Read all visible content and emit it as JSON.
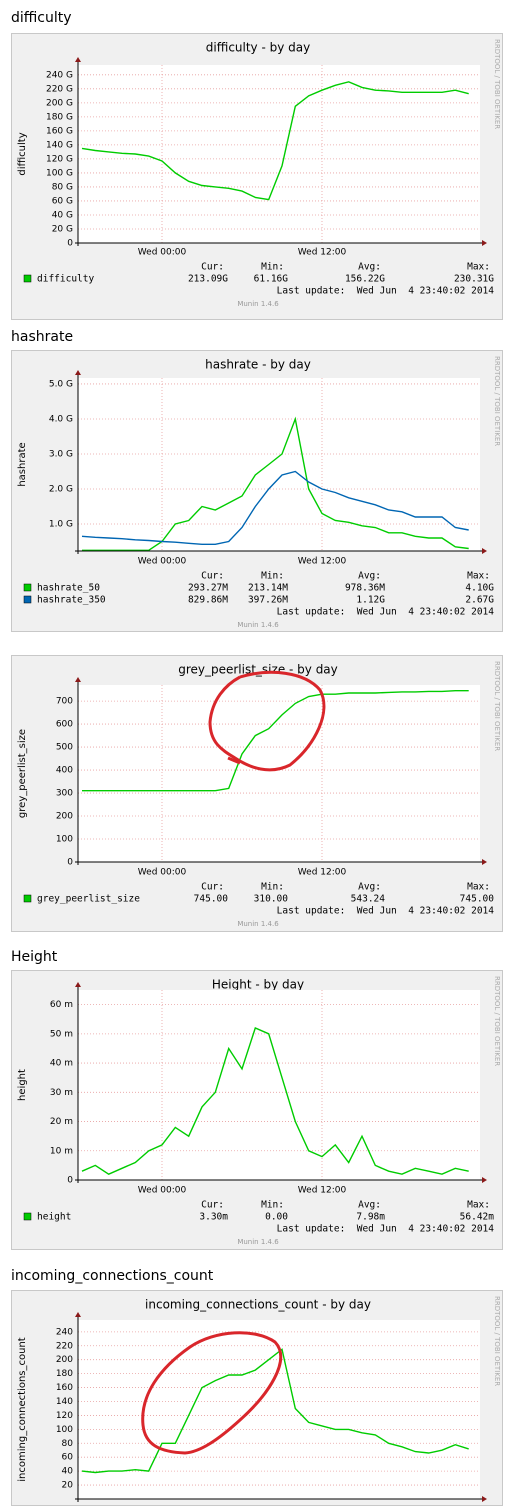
{
  "chart_data": [
    {
      "type": "line",
      "section_title": "difficulty",
      "title": "difficulty - by day",
      "ylabel": "difficulty",
      "x": [
        -6,
        -5,
        -4,
        -3,
        -2,
        -1,
        0,
        1,
        2,
        3,
        4,
        5,
        6,
        7,
        8,
        9,
        10,
        11,
        12,
        13,
        14,
        15,
        16,
        17,
        18,
        19,
        20,
        21,
        22,
        23
      ],
      "xlim": [
        -6.3,
        23.85
      ],
      "xticks": [
        {
          "value": 0,
          "label": "Wed 00:00"
        },
        {
          "value": 12,
          "label": "Wed 12:00"
        }
      ],
      "ylim": [
        0,
        254
      ],
      "yticks": [
        0,
        {
          "value": 20,
          "label": "20 G"
        },
        {
          "value": 40,
          "label": "40 G"
        },
        {
          "value": 60,
          "label": "60 G"
        },
        {
          "value": 80,
          "label": "80 G"
        },
        {
          "value": 100,
          "label": "100 G"
        },
        {
          "value": 120,
          "label": "120 G"
        },
        {
          "value": 140,
          "label": "140 G"
        },
        {
          "value": 160,
          "label": "160 G"
        },
        {
          "value": 180,
          "label": "180 G"
        },
        {
          "value": 200,
          "label": "200 G"
        },
        {
          "value": 220,
          "label": "220 G"
        },
        {
          "value": 240,
          "label": "240 G"
        }
      ],
      "grid": true,
      "series": [
        {
          "name": "difficulty",
          "color": "#00cc00",
          "values": [
            135,
            132,
            130,
            128,
            127,
            124,
            117,
            100,
            88,
            82,
            80,
            78,
            74,
            65,
            62,
            110,
            195,
            210,
            218,
            225,
            230,
            222,
            218,
            217,
            215,
            215,
            215,
            215,
            218,
            213
          ]
        }
      ],
      "stats_headers": [
        "Cur:",
        "Min:",
        "Avg:",
        "Max:"
      ],
      "stats": [
        [
          "213.09G",
          "61.16G",
          "156.22G",
          "230.31G"
        ]
      ],
      "last_update": "Last update:  Wed Jun  4 23:40:02 2014",
      "footer": "Munin 1.4.6",
      "watermark": "RRDTOOL / TOBI OETIKER"
    },
    {
      "type": "line",
      "section_title": "hashrate",
      "title": "hashrate - by day",
      "ylabel": "hashrate",
      "x": [
        -6,
        -5,
        -4,
        -3,
        -2,
        -1,
        0,
        1,
        2,
        3,
        4,
        5,
        6,
        7,
        8,
        9,
        10,
        11,
        12,
        13,
        14,
        15,
        16,
        17,
        18,
        19,
        20,
        21,
        22,
        23
      ],
      "xlim": [
        -6.3,
        23.85
      ],
      "xticks": [
        {
          "value": 0,
          "label": "Wed 00:00"
        },
        {
          "value": 12,
          "label": "Wed 12:00"
        }
      ],
      "ylim": [
        0.23,
        5.17
      ],
      "yticks": [
        {
          "value": 1,
          "label": "1.0 G"
        },
        {
          "value": 2,
          "label": "2.0 G"
        },
        {
          "value": 3,
          "label": "3.0 G"
        },
        {
          "value": 4,
          "label": "4.0 G"
        },
        {
          "value": 5,
          "label": "5.0 G"
        }
      ],
      "grid": true,
      "series": [
        {
          "name": "hashrate_50",
          "color": "#00cc00",
          "values": [
            0.25,
            0.25,
            0.25,
            0.25,
            0.25,
            0.25,
            0.5,
            1.0,
            1.1,
            1.5,
            1.4,
            1.6,
            1.8,
            2.4,
            2.7,
            3.0,
            4.0,
            2.0,
            1.3,
            1.1,
            1.05,
            0.95,
            0.9,
            0.75,
            0.75,
            0.65,
            0.6,
            0.6,
            0.35,
            0.3
          ]
        },
        {
          "name": "hashrate_350",
          "color": "#0066b3",
          "values": [
            0.65,
            0.62,
            0.6,
            0.58,
            0.55,
            0.53,
            0.5,
            0.48,
            0.45,
            0.42,
            0.42,
            0.5,
            0.9,
            1.5,
            2.0,
            2.4,
            2.5,
            2.2,
            2.0,
            1.9,
            1.75,
            1.65,
            1.55,
            1.4,
            1.35,
            1.2,
            1.2,
            1.2,
            0.9,
            0.83
          ]
        }
      ],
      "stats_headers": [
        "Cur:",
        "Min:",
        "Avg:",
        "Max:"
      ],
      "stats": [
        [
          "293.27M",
          "213.14M",
          "978.36M",
          "4.10G"
        ],
        [
          "829.86M",
          "397.26M",
          "1.12G",
          "2.67G"
        ]
      ],
      "last_update": "Last update:  Wed Jun  4 23:40:02 2014",
      "footer": "Munin 1.4.6",
      "watermark": "RRDTOOL / TOBI OETIKER"
    },
    {
      "type": "line",
      "title": "grey_peerlist_size - by day",
      "ylabel": "grey_peerlist_size",
      "x": [
        -6,
        -5,
        -4,
        -3,
        -2,
        -1,
        0,
        1,
        2,
        3,
        4,
        5,
        6,
        7,
        8,
        9,
        10,
        11,
        12,
        13,
        14,
        15,
        16,
        17,
        18,
        19,
        20,
        21,
        22,
        23
      ],
      "xlim": [
        -6.3,
        23.85
      ],
      "xticks": [
        {
          "value": 0,
          "label": "Wed 00:00"
        },
        {
          "value": 12,
          "label": "Wed 12:00"
        }
      ],
      "ylim": [
        0,
        770
      ],
      "yticks": [
        0,
        100,
        200,
        300,
        400,
        500,
        600,
        700
      ],
      "grid": true,
      "series": [
        {
          "name": "grey_peerlist_size",
          "color": "#00cc00",
          "values": [
            310,
            310,
            310,
            310,
            310,
            310,
            310,
            310,
            310,
            310,
            310,
            320,
            470,
            550,
            580,
            640,
            690,
            720,
            730,
            730,
            735,
            735,
            735,
            738,
            740,
            740,
            742,
            742,
            745,
            745
          ]
        }
      ],
      "stats_headers": [
        "Cur:",
        "Min:",
        "Avg:",
        "Max:"
      ],
      "stats": [
        [
          "745.00",
          "310.00",
          "543.24",
          "745.00"
        ]
      ],
      "last_update": "Last update:  Wed Jun  4 23:40:02 2014",
      "footer": "Munin 1.4.6",
      "watermark": "RRDTOOL / TOBI OETIKER"
    },
    {
      "type": "line",
      "section_title": "Height",
      "title": "Height - by day",
      "ylabel": "height",
      "x": [
        -6,
        -5,
        -4,
        -3,
        -2,
        -1,
        0,
        1,
        2,
        3,
        4,
        5,
        6,
        7,
        8,
        9,
        10,
        11,
        12,
        13,
        14,
        15,
        16,
        17,
        18,
        19,
        20,
        21,
        22,
        23
      ],
      "xlim": [
        -6.3,
        23.85
      ],
      "xticks": [
        {
          "value": 0,
          "label": "Wed 00:00"
        },
        {
          "value": 12,
          "label": "Wed 12:00"
        }
      ],
      "ylim": [
        0,
        65
      ],
      "yticks": [
        0,
        {
          "value": 10,
          "label": "10 m"
        },
        {
          "value": 20,
          "label": "20 m"
        },
        {
          "value": 30,
          "label": "30 m"
        },
        {
          "value": 40,
          "label": "40 m"
        },
        {
          "value": 50,
          "label": "50 m"
        },
        {
          "value": 60,
          "label": "60 m"
        }
      ],
      "grid": true,
      "series": [
        {
          "name": "height",
          "color": "#00cc00",
          "values": [
            3,
            5,
            2,
            4,
            6,
            10,
            12,
            18,
            15,
            25,
            30,
            45,
            38,
            52,
            50,
            35,
            20,
            10,
            8,
            12,
            6,
            15,
            5,
            3,
            2,
            4,
            3,
            2,
            4,
            3
          ]
        }
      ],
      "stats_headers": [
        "Cur:",
        "Min:",
        "Avg:",
        "Max:"
      ],
      "stats": [
        [
          "3.30m",
          "0.00",
          "7.98m",
          "56.42m"
        ]
      ],
      "last_update": "Last update:  Wed Jun  4 23:40:02 2014",
      "footer": "Munin 1.4.6",
      "watermark": "RRDTOOL / TOBI OETIKER"
    },
    {
      "type": "line",
      "section_title": "incoming_connections_count",
      "title": "incoming_connections_count - by day",
      "ylabel": "incoming_connections_count",
      "x": [
        -6,
        -5,
        -4,
        -3,
        -2,
        -1,
        0,
        1,
        2,
        3,
        4,
        5,
        6,
        7,
        8,
        9,
        10,
        11,
        12,
        13,
        14,
        15,
        16,
        17,
        18,
        19,
        20,
        21,
        22,
        23
      ],
      "xlim": [
        -6.3,
        23.85
      ],
      "ylim": [
        0,
        257
      ],
      "yticks": [
        20,
        40,
        60,
        80,
        100,
        120,
        140,
        160,
        180,
        200,
        220,
        240
      ],
      "grid": true,
      "series": [
        {
          "name": "incoming_connections_count",
          "color": "#00cc00",
          "values": [
            40,
            38,
            40,
            40,
            42,
            40,
            80,
            80,
            120,
            160,
            170,
            178,
            178,
            185,
            200,
            215,
            130,
            110,
            105,
            100,
            100,
            95,
            92,
            80,
            75,
            68,
            66,
            70,
            78,
            72
          ]
        }
      ],
      "watermark": "RRDTOOL / TOBI OETIKER"
    }
  ]
}
